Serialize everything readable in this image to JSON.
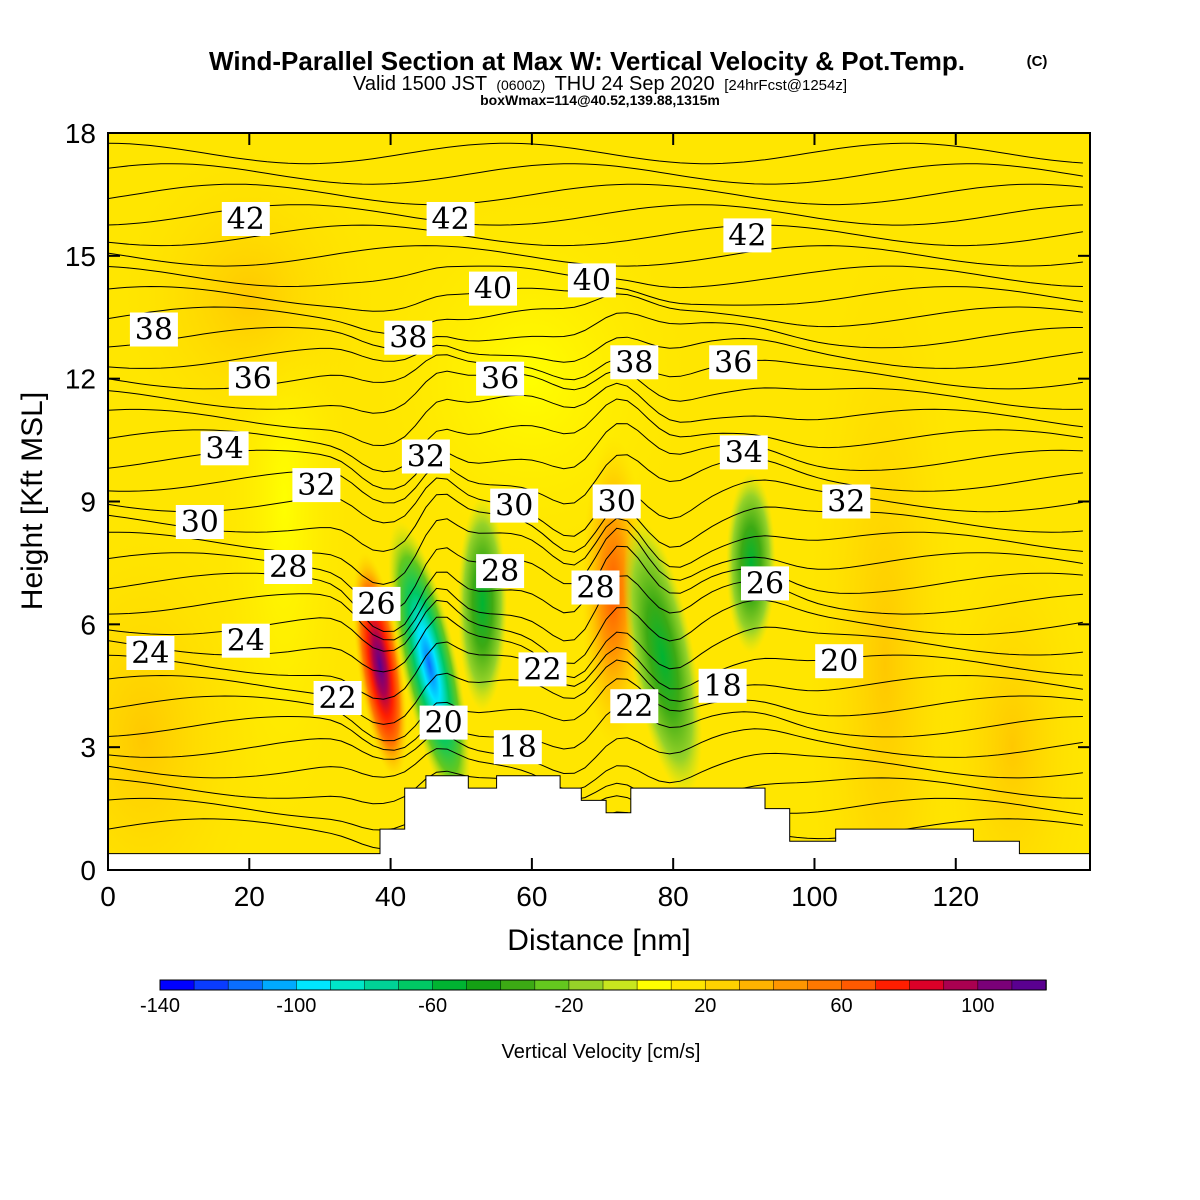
{
  "header": {
    "title": "Wind-Parallel Section at Max W: Vertical Velocity & Pot.Temp.",
    "title_mark": "(C)",
    "valid_prefix": "Valid 1500 JST",
    "valid_utc": "(0600Z)",
    "valid_date": "THU 24 Sep 2020",
    "forecast": "[24hrFcst@1254z]",
    "boxwmax": "boxWmax=114@40.52,139.88,1315m"
  },
  "chart_data": {
    "type": "heatmap",
    "xlabel": "Distance [nm]",
    "ylabel": "Height [Kft MSL]",
    "xlim": [
      0,
      139
    ],
    "ylim": [
      0,
      18
    ],
    "x_ticks": [
      0,
      20,
      40,
      60,
      80,
      100,
      120
    ],
    "y_ticks": [
      0,
      3,
      6,
      9,
      12,
      15,
      18
    ],
    "colorbar": {
      "label": "Vertical Velocity [cm/s]",
      "range": [
        -140,
        120
      ],
      "step": 10,
      "tick_labels": [
        -140,
        -100,
        -60,
        -20,
        20,
        60,
        100
      ],
      "colors": [
        "#0000ff",
        "#0a3cff",
        "#0a6eff",
        "#00aaff",
        "#00e6ff",
        "#00e6c8",
        "#00d296",
        "#00c864",
        "#00b432",
        "#14a014",
        "#3caa14",
        "#64c81e",
        "#96d228",
        "#c8e61e",
        "#ffff00",
        "#ffe600",
        "#ffd200",
        "#ffb400",
        "#ff9600",
        "#ff7800",
        "#ff5a00",
        "#ff1e00",
        "#dc0028",
        "#aa0050",
        "#7a0078",
        "#5a0090"
      ]
    },
    "background_color": "#ffe600",
    "theta_contour_labels": [
      {
        "value": "42",
        "x": 19.5,
        "y": 15.9
      },
      {
        "value": "42",
        "x": 48.5,
        "y": 15.9
      },
      {
        "value": "42",
        "x": 90.5,
        "y": 15.5
      },
      {
        "value": "40",
        "x": 54.5,
        "y": 14.2
      },
      {
        "value": "40",
        "x": 68.5,
        "y": 14.4
      },
      {
        "value": "38",
        "x": 6.5,
        "y": 13.2
      },
      {
        "value": "38",
        "x": 42.5,
        "y": 13.0
      },
      {
        "value": "38",
        "x": 74.5,
        "y": 12.4
      },
      {
        "value": "36",
        "x": 20.5,
        "y": 12.0
      },
      {
        "value": "36",
        "x": 55.5,
        "y": 12.0
      },
      {
        "value": "36",
        "x": 88.5,
        "y": 12.4
      },
      {
        "value": "34",
        "x": 16.5,
        "y": 10.3
      },
      {
        "value": "34",
        "x": 90.0,
        "y": 10.2
      },
      {
        "value": "32",
        "x": 45.0,
        "y": 10.1
      },
      {
        "value": "32",
        "x": 29.5,
        "y": 9.4
      },
      {
        "value": "32",
        "x": 104.5,
        "y": 9.0
      },
      {
        "value": "30",
        "x": 13.0,
        "y": 8.5
      },
      {
        "value": "30",
        "x": 57.5,
        "y": 8.9
      },
      {
        "value": "30",
        "x": 72.0,
        "y": 9.0
      },
      {
        "value": "28",
        "x": 25.5,
        "y": 7.4
      },
      {
        "value": "28",
        "x": 55.5,
        "y": 7.3
      },
      {
        "value": "28",
        "x": 69.0,
        "y": 6.9
      },
      {
        "value": "26",
        "x": 38.0,
        "y": 6.5
      },
      {
        "value": "26",
        "x": 93.0,
        "y": 7.0
      },
      {
        "value": "24",
        "x": 6.0,
        "y": 5.3
      },
      {
        "value": "24",
        "x": 19.5,
        "y": 5.6
      },
      {
        "value": "22",
        "x": 32.5,
        "y": 4.2
      },
      {
        "value": "22",
        "x": 61.5,
        "y": 4.9
      },
      {
        "value": "22",
        "x": 74.5,
        "y": 4.0
      },
      {
        "value": "20",
        "x": 47.5,
        "y": 3.6
      },
      {
        "value": "20",
        "x": 103.5,
        "y": 5.1
      },
      {
        "value": "18",
        "x": 58.0,
        "y": 3.0
      },
      {
        "value": "18",
        "x": 87.0,
        "y": 4.5
      }
    ],
    "terrain": [
      [
        0,
        0.4
      ],
      [
        38.5,
        0.4
      ],
      [
        38.5,
        1.0
      ],
      [
        42,
        1.0
      ],
      [
        42,
        2.0
      ],
      [
        45,
        2.0
      ],
      [
        45,
        2.3
      ],
      [
        51,
        2.3
      ],
      [
        51,
        2.0
      ],
      [
        55,
        2.0
      ],
      [
        55,
        2.3
      ],
      [
        64,
        2.3
      ],
      [
        64,
        2.0
      ],
      [
        67,
        2.0
      ],
      [
        67,
        1.7
      ],
      [
        70.5,
        1.7
      ],
      [
        70.5,
        1.4
      ],
      [
        74,
        1.4
      ],
      [
        74,
        2.0
      ],
      [
        93,
        2.0
      ],
      [
        93,
        1.5
      ],
      [
        96.5,
        1.5
      ],
      [
        96.5,
        0.7
      ],
      [
        103,
        0.7
      ],
      [
        103,
        1.0
      ],
      [
        122.5,
        1.0
      ],
      [
        122.5,
        0.7
      ],
      [
        129,
        0.7
      ],
      [
        129,
        0.4
      ],
      [
        139,
        0.4
      ]
    ],
    "velocity_features": [
      {
        "name": "updraft-west",
        "x": 38.5,
        "y": 5.0,
        "peak_cm_s": 114
      },
      {
        "name": "downdraft-west",
        "x": 45.0,
        "y": 5.2,
        "peak_cm_s": -100
      },
      {
        "name": "updraft-central",
        "x": 71.0,
        "y": 6.5,
        "peak_cm_s": 35
      },
      {
        "name": "downdraft-central",
        "x": 79.0,
        "y": 5.0,
        "peak_cm_s": -50
      }
    ]
  }
}
